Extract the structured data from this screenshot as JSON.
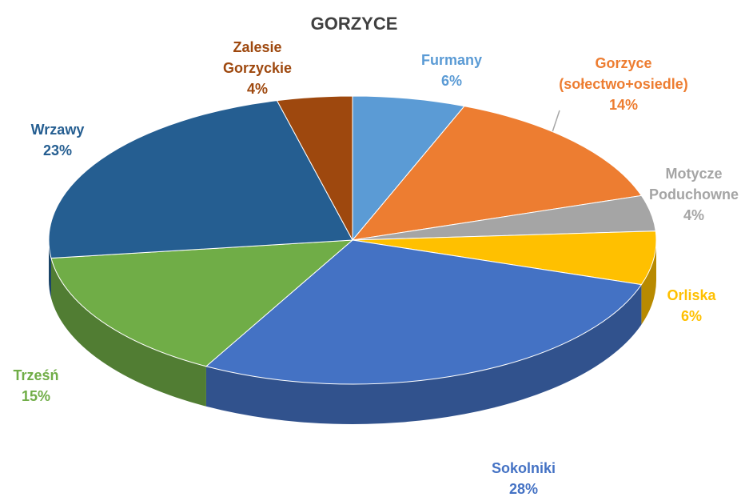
{
  "chart_data": {
    "type": "pie3d",
    "title": "GORZYCE",
    "categories": [
      "Furmany",
      "Gorzyce (sołectwo+osiedle)",
      "Motycze Poduchowne",
      "Orliska",
      "Sokolniki",
      "Trześń",
      "Wrzawy",
      "Zalesie Gorzyckie"
    ],
    "values": [
      6,
      14,
      4,
      6,
      28,
      15,
      23,
      4
    ],
    "value_labels": [
      "6%",
      "14%",
      "4%",
      "6%",
      "28%",
      "15%",
      "23%",
      "4%"
    ],
    "colors": [
      "#5b9bd5",
      "#ed7d31",
      "#a5a5a5",
      "#ffc000",
      "#4472c4",
      "#70ad47",
      "#255e91",
      "#9e480e"
    ]
  }
}
